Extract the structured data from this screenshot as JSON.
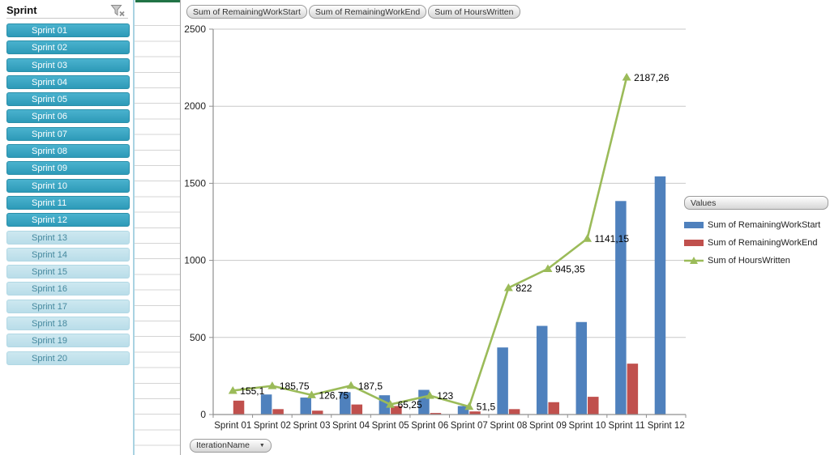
{
  "slicer": {
    "title": "Sprint",
    "clear_filter_icon": "funnel-with-x",
    "items": [
      {
        "label": "Sprint 01",
        "selected": true
      },
      {
        "label": "Sprint 02",
        "selected": true
      },
      {
        "label": "Sprint 03",
        "selected": true
      },
      {
        "label": "Sprint 04",
        "selected": true
      },
      {
        "label": "Sprint 05",
        "selected": true
      },
      {
        "label": "Sprint 06",
        "selected": true
      },
      {
        "label": "Sprint 07",
        "selected": true
      },
      {
        "label": "Sprint 08",
        "selected": true
      },
      {
        "label": "Sprint 09",
        "selected": true
      },
      {
        "label": "Sprint 10",
        "selected": true
      },
      {
        "label": "Sprint 11",
        "selected": true
      },
      {
        "label": "Sprint 12",
        "selected": true
      },
      {
        "label": "Sprint 13",
        "selected": false
      },
      {
        "label": "Sprint 14",
        "selected": false
      },
      {
        "label": "Sprint 15",
        "selected": false
      },
      {
        "label": "Sprint 16",
        "selected": false
      },
      {
        "label": "Sprint 17",
        "selected": false
      },
      {
        "label": "Sprint 18",
        "selected": false
      },
      {
        "label": "Sprint 19",
        "selected": false
      },
      {
        "label": "Sprint 20",
        "selected": false
      }
    ]
  },
  "field_buttons": [
    "Sum of RemainingWorkStart",
    "Sum of RemainingWorkEnd",
    "Sum of HoursWritten"
  ],
  "axis_field_button": {
    "label": "IterationName",
    "dropdown": "▼"
  },
  "legend": {
    "header": "Values",
    "entries": [
      {
        "label": "Sum of RemainingWorkStart",
        "type": "bar",
        "color": "#4f81bd"
      },
      {
        "label": "Sum of RemainingWorkEnd",
        "type": "bar",
        "color": "#c0504d"
      },
      {
        "label": "Sum of HoursWritten",
        "type": "line",
        "color": "#9bbb59"
      }
    ]
  },
  "chart_data": {
    "type": "combo",
    "categories": [
      "Sprint 01",
      "Sprint 02",
      "Sprint 03",
      "Sprint 04",
      "Sprint 05",
      "Sprint 06",
      "Sprint 07",
      "Sprint 08",
      "Sprint 09",
      "Sprint 10",
      "Sprint 11",
      "Sprint 12"
    ],
    "series": [
      {
        "name": "Sum of RemainingWorkStart",
        "type": "bar",
        "color": "#4f81bd",
        "values": [
          0,
          130,
          110,
          145,
          125,
          160,
          55,
          435,
          575,
          600,
          1385,
          1545
        ]
      },
      {
        "name": "Sum of RemainingWorkEnd",
        "type": "bar",
        "color": "#c0504d",
        "values": [
          90,
          35,
          25,
          65,
          55,
          10,
          20,
          35,
          80,
          115,
          330,
          0
        ]
      },
      {
        "name": "Sum of HoursWritten",
        "type": "line",
        "color": "#9bbb59",
        "values": [
          155.1,
          185.75,
          126.75,
          187.5,
          65.25,
          123,
          51.5,
          822,
          945.35,
          1141.15,
          2187.26,
          null
        ],
        "labels": [
          "155,1",
          "185,75",
          "126,75",
          "187,5",
          "65,25",
          "123",
          "51,5",
          "822",
          "945,35",
          "1141,15",
          "2187,26",
          ""
        ]
      }
    ],
    "title": "",
    "xlabel": "",
    "ylabel": "",
    "ylim": [
      0,
      2500
    ],
    "yticks": [
      0,
      500,
      1000,
      1500,
      2000,
      2500
    ],
    "grid": true,
    "legend_position": "right"
  },
  "colors": {
    "bar_blue": "#4f81bd",
    "bar_red": "#c0504d",
    "line_green": "#9bbb59",
    "slicer_selected": "#2d9ab8",
    "slicer_unselected": "#b9dde9",
    "gridline": "#c9c9c9",
    "axis": "#8f8f8f",
    "selected_cell_green": "#217346"
  }
}
